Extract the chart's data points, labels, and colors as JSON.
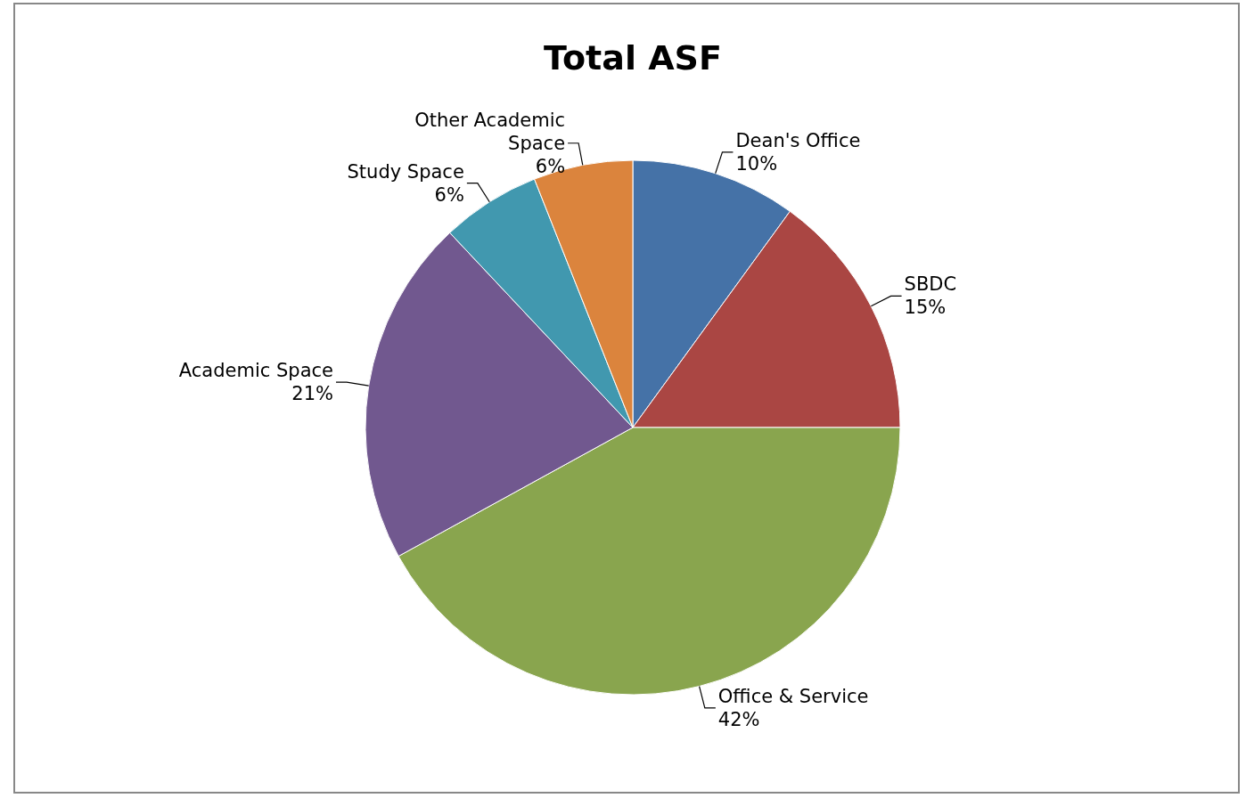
{
  "chart_data": {
    "type": "pie",
    "title": "Total ASF",
    "categories": [
      "Dean's Office",
      "SBDC",
      "Office & Service",
      "Academic Space",
      "Study Space",
      "Other Academic Space"
    ],
    "values": [
      10,
      15,
      42,
      21,
      6,
      6
    ],
    "colors": [
      "#4572a7",
      "#aa4643",
      "#89a54e",
      "#71588f",
      "#4198af",
      "#db843d"
    ],
    "value_labels": [
      "10%",
      "15%",
      "42%",
      "21%",
      "6%",
      "6%"
    ],
    "legend": false
  }
}
